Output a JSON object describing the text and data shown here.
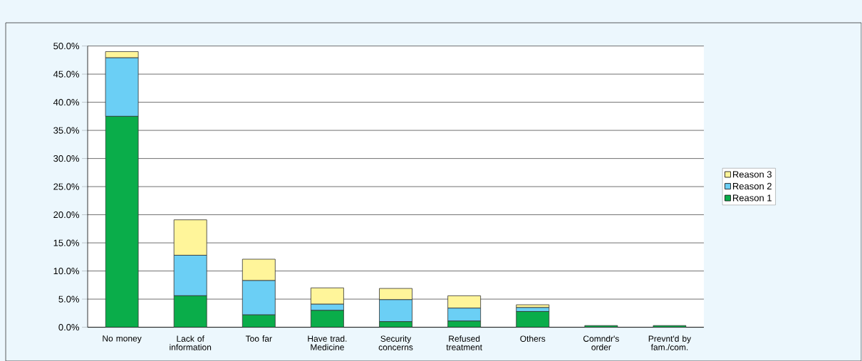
{
  "chart_data": {
    "type": "bar",
    "stacked": true,
    "categories": [
      "No money",
      "Lack of information",
      "Too far",
      "Have trad. Medicine",
      "Security concerns",
      "Refused treatment",
      "Others",
      "Comndr's order",
      "Prevnt'd by fam./com."
    ],
    "series": [
      {
        "name": "Reason 1",
        "color": "#0aad4a",
        "values": [
          37.5,
          5.6,
          2.2,
          3.0,
          1.0,
          1.1,
          2.8,
          0.3,
          0.3
        ]
      },
      {
        "name": "Reason 2",
        "color": "#6bcff5",
        "values": [
          10.4,
          7.2,
          6.1,
          1.1,
          3.9,
          2.3,
          0.7,
          0.0,
          0.0
        ]
      },
      {
        "name": "Reason 3",
        "color": "#fff59a",
        "values": [
          1.1,
          6.3,
          3.8,
          2.9,
          2.0,
          2.2,
          0.5,
          null,
          null
        ]
      }
    ],
    "ylim": [
      0,
      50
    ],
    "yticks": [
      {
        "value": 0,
        "label": "0.0%"
      },
      {
        "value": 5,
        "label": "5.0%"
      },
      {
        "value": 10,
        "label": "10.0%"
      },
      {
        "value": 15,
        "label": "15.0%"
      },
      {
        "value": 20,
        "label": "20.0%"
      },
      {
        "value": 25,
        "label": "25.0%"
      },
      {
        "value": 30,
        "label": "30.0%"
      },
      {
        "value": 35,
        "label": "35.0%"
      },
      {
        "value": 40,
        "label": "40.0%"
      },
      {
        "value": 45,
        "label": "45.0%"
      },
      {
        "value": 50,
        "label": "50.0%"
      }
    ],
    "grid": "y",
    "legend": "right"
  }
}
